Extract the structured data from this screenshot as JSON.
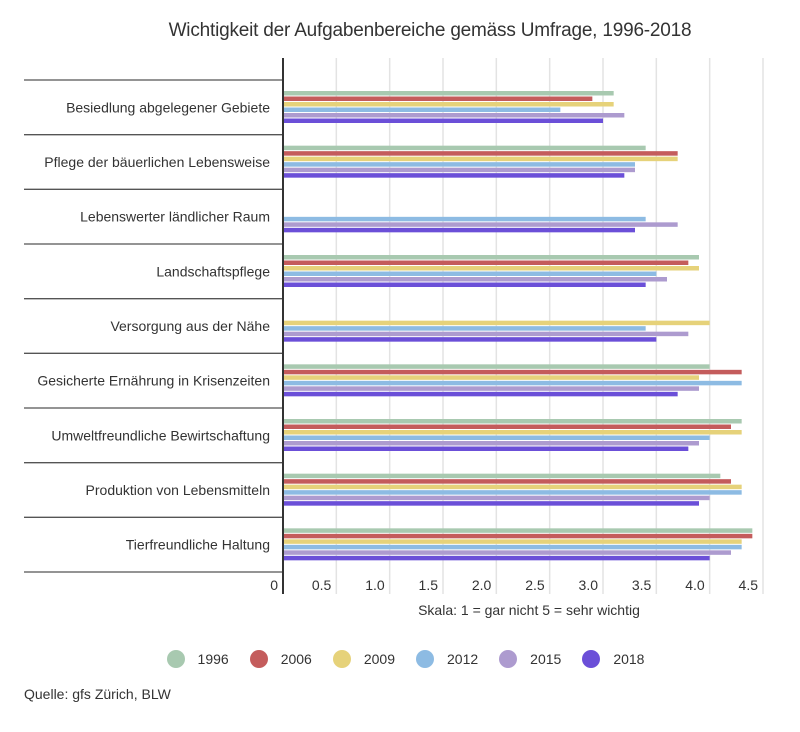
{
  "chart_data": {
    "type": "bar",
    "orientation": "horizontal",
    "title": "Wichtigkeit der Aufgabenbereiche gemäss Umfrage, 1996-2018",
    "xlabel": "Skala: 1 = gar nicht 5 = sehr wichtig",
    "ylabel": "",
    "xlim": [
      0,
      4.5
    ],
    "x_ticks": [
      "0",
      "0.5",
      "1.0",
      "1.5",
      "2.0",
      "2.5",
      "3.0",
      "3.5",
      "4.0",
      "4.5"
    ],
    "x_tick_values": [
      0,
      0.5,
      1.0,
      1.5,
      2.0,
      2.5,
      3.0,
      3.5,
      4.0,
      4.5
    ],
    "grid": true,
    "legend_position": "bottom",
    "categories": [
      "Besiedlung abgelegener Gebiete",
      "Pflege der bäuerlichen Lebensweise",
      "Lebenswerter ländlicher Raum",
      "Landschaftspflege",
      "Versorgung aus der Nähe",
      "Gesicherte Ernährung in Krisenzeiten",
      "Umweltfreundliche Bewirtschaftung",
      "Produktion von Lebensmitteln",
      "Tierfreundliche Haltung"
    ],
    "series": [
      {
        "name": "1996",
        "color": "#a8c9b0",
        "values": [
          3.1,
          3.4,
          null,
          3.9,
          null,
          4.0,
          4.3,
          4.1,
          4.4
        ]
      },
      {
        "name": "2006",
        "color": "#c45c5c",
        "values": [
          2.9,
          3.7,
          null,
          3.8,
          null,
          4.3,
          4.2,
          4.2,
          4.4
        ]
      },
      {
        "name": "2009",
        "color": "#e6d27a",
        "values": [
          3.1,
          3.7,
          null,
          3.9,
          4.0,
          3.9,
          4.3,
          4.3,
          4.3
        ]
      },
      {
        "name": "2012",
        "color": "#8dbbe3",
        "values": [
          2.6,
          3.3,
          3.4,
          3.5,
          3.4,
          4.3,
          4.0,
          4.3,
          4.3
        ]
      },
      {
        "name": "2015",
        "color": "#ad9bcf",
        "values": [
          3.2,
          3.3,
          3.7,
          3.6,
          3.8,
          3.9,
          3.9,
          4.0,
          4.2
        ]
      },
      {
        "name": "2018",
        "color": "#6b4fd8",
        "values": [
          3.0,
          3.2,
          3.3,
          3.4,
          3.5,
          3.7,
          3.8,
          3.9,
          4.0
        ]
      }
    ]
  },
  "source": "Quelle: gfs Zürich, BLW"
}
